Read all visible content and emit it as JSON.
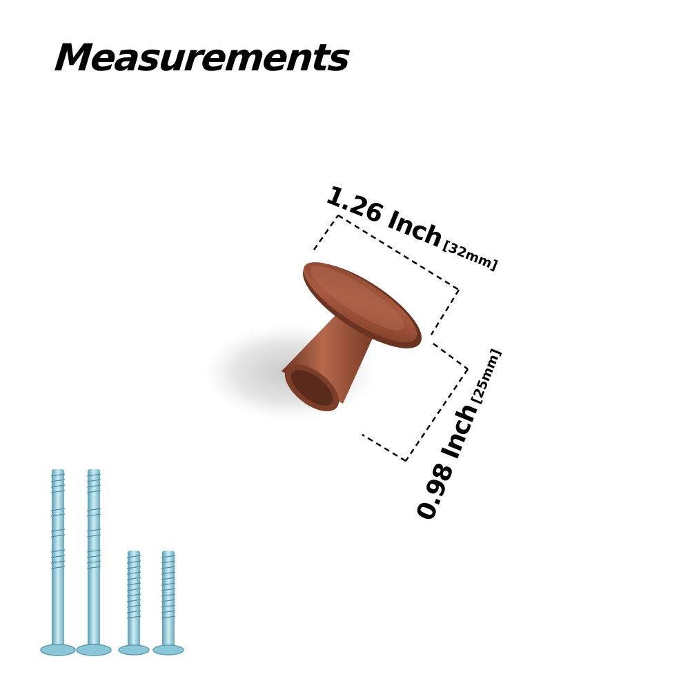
{
  "title": "Measurements",
  "dimensions": {
    "width": {
      "value": "1.26 Inch",
      "metric": "[32mm]"
    },
    "height": {
      "value": "0.98 Inch",
      "metric": "[25mm]"
    }
  },
  "colors": {
    "knob": "#9b4f37",
    "knob_dark": "#6b3322",
    "screw": "#9fd6e4",
    "screw_dark": "#5a9cb2",
    "dash": "#000000"
  },
  "screws": [
    {
      "type": "long"
    },
    {
      "type": "long"
    },
    {
      "type": "short"
    },
    {
      "type": "short"
    }
  ]
}
